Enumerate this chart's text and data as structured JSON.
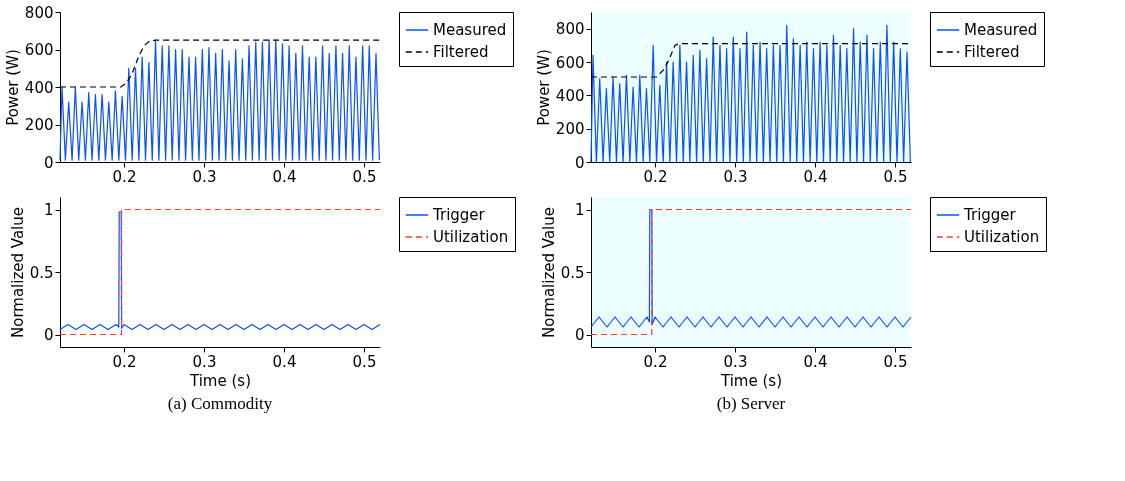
{
  "chart_data": [
    {
      "type": "line",
      "ylabel": "Power (W)",
      "xlim": [
        0.12,
        0.52
      ],
      "xticks": [
        0.2,
        0.3,
        0.4,
        0.5
      ],
      "ylim": [
        0,
        800
      ],
      "yticks": [
        0,
        200,
        400,
        600,
        800
      ],
      "grid": false,
      "legend": "right",
      "marker": "none",
      "series": [
        {
          "name": "Measured",
          "color": "#0a50ff",
          "line_style": "solid",
          "x": [
            0.12,
            0.1225,
            0.1267,
            0.1309,
            0.1351,
            0.1392,
            0.1434,
            0.1476,
            0.1518,
            0.1559,
            0.1601,
            0.1643,
            0.1685,
            0.1726,
            0.1768,
            0.181,
            0.1852,
            0.1893,
            0.1935,
            0.1977,
            0.2019,
            0.206,
            0.2102,
            0.2144,
            0.2186,
            0.2227,
            0.2269,
            0.2311,
            0.2353,
            0.2394,
            0.2436,
            0.2478,
            0.252,
            0.2561,
            0.2603,
            0.2645,
            0.2687,
            0.2728,
            0.277,
            0.2812,
            0.2854,
            0.2895,
            0.2937,
            0.2979,
            0.3021,
            0.3062,
            0.3104,
            0.3146,
            0.3188,
            0.3229,
            0.3271,
            0.3313,
            0.3355,
            0.3396,
            0.3438,
            0.348,
            0.3522,
            0.3563,
            0.3605,
            0.3647,
            0.3689,
            0.373,
            0.3772,
            0.3814,
            0.3856,
            0.3897,
            0.3939,
            0.3981,
            0.4023,
            0.4064,
            0.4106,
            0.4148,
            0.419,
            0.4231,
            0.4273,
            0.4315,
            0.4357,
            0.4398,
            0.444,
            0.4482,
            0.4524,
            0.4565,
            0.4607,
            0.4649,
            0.4691,
            0.4732,
            0.4774,
            0.4816,
            0.4858,
            0.4899,
            0.4941,
            0.4983,
            0.5025,
            0.5066,
            0.5108,
            0.515,
            0.5192
          ],
          "values": [
            10,
            400,
            10,
            320,
            10,
            400,
            10,
            320,
            10,
            370,
            10,
            360,
            10,
            360,
            10,
            320,
            10,
            380,
            10,
            350,
            10,
            500,
            10,
            500,
            10,
            560,
            10,
            530,
            10,
            650,
            10,
            620,
            10,
            620,
            10,
            600,
            10,
            600,
            10,
            560,
            10,
            560,
            10,
            600,
            10,
            610,
            10,
            580,
            10,
            600,
            10,
            540,
            10,
            600,
            10,
            550,
            10,
            620,
            10,
            640,
            10,
            640,
            10,
            650,
            10,
            650,
            10,
            630,
            10,
            620,
            10,
            580,
            10,
            620,
            10,
            560,
            10,
            560,
            10,
            620,
            10,
            580,
            10,
            620,
            10,
            580,
            10,
            620,
            10,
            560,
            10,
            620,
            10,
            620,
            10,
            580,
            10
          ]
        },
        {
          "name": "Filtered",
          "color": "#000000",
          "line_style": "dashed",
          "x": [
            0.12,
            0.196,
            0.203,
            0.21,
            0.218,
            0.225,
            0.232,
            0.24,
            0.52
          ],
          "values": [
            400,
            400,
            420,
            470,
            560,
            620,
            645,
            650,
            650
          ]
        }
      ]
    },
    {
      "type": "line",
      "ylabel": "Power (W)",
      "xlim": [
        0.12,
        0.52
      ],
      "xticks": [
        0.2,
        0.3,
        0.4,
        0.5
      ],
      "ylim": [
        0,
        900
      ],
      "yticks": [
        0,
        200,
        400,
        600,
        800
      ],
      "grid": false,
      "legend": "right",
      "marker": "none",
      "series": [
        {
          "name": "Measured",
          "color": "#0a50ff",
          "line_style": "solid",
          "x": [
            0.12,
            0.1225,
            0.1267,
            0.1309,
            0.1351,
            0.1392,
            0.1434,
            0.1476,
            0.1518,
            0.1559,
            0.1601,
            0.1643,
            0.1685,
            0.1726,
            0.1768,
            0.181,
            0.1852,
            0.1893,
            0.1935,
            0.1977,
            0.2019,
            0.206,
            0.2102,
            0.2144,
            0.2186,
            0.2227,
            0.2269,
            0.2311,
            0.2353,
            0.2394,
            0.2436,
            0.2478,
            0.252,
            0.2561,
            0.2603,
            0.2645,
            0.2687,
            0.2728,
            0.277,
            0.2812,
            0.2854,
            0.2895,
            0.2937,
            0.2979,
            0.3021,
            0.3062,
            0.3104,
            0.3146,
            0.3188,
            0.3229,
            0.3271,
            0.3313,
            0.3355,
            0.3396,
            0.3438,
            0.348,
            0.3522,
            0.3563,
            0.3605,
            0.3647,
            0.3689,
            0.373,
            0.3772,
            0.3814,
            0.3856,
            0.3897,
            0.3939,
            0.3981,
            0.4023,
            0.4064,
            0.4106,
            0.4148,
            0.419,
            0.4231,
            0.4273,
            0.4315,
            0.4357,
            0.4398,
            0.444,
            0.4482,
            0.4524,
            0.4565,
            0.4607,
            0.4649,
            0.4691,
            0.4732,
            0.4774,
            0.4816,
            0.4858,
            0.4899,
            0.4941,
            0.4983,
            0.5025,
            0.5066,
            0.5108,
            0.515,
            0.5192
          ],
          "values": [
            0,
            640,
            0,
            500,
            0,
            440,
            0,
            510,
            0,
            470,
            0,
            520,
            0,
            450,
            0,
            520,
            0,
            440,
            0,
            700,
            0,
            460,
            0,
            600,
            0,
            600,
            0,
            700,
            0,
            600,
            0,
            640,
            0,
            670,
            0,
            620,
            0,
            750,
            0,
            700,
            0,
            680,
            0,
            750,
            0,
            680,
            0,
            780,
            0,
            700,
            0,
            720,
            0,
            680,
            0,
            700,
            0,
            700,
            0,
            820,
            0,
            740,
            0,
            700,
            0,
            720,
            0,
            680,
            0,
            720,
            0,
            700,
            0,
            760,
            0,
            700,
            0,
            680,
            0,
            800,
            0,
            720,
            0,
            760,
            0,
            680,
            0,
            720,
            0,
            820,
            0,
            720,
            0,
            680,
            0,
            660,
            0
          ]
        },
        {
          "name": "Filtered",
          "color": "#000000",
          "line_style": "dashed",
          "x": [
            0.12,
            0.202,
            0.212,
            0.218,
            0.225,
            0.23,
            0.52
          ],
          "values": [
            510,
            510,
            560,
            620,
            700,
            710,
            710
          ]
        }
      ]
    },
    {
      "type": "line",
      "xlabel": "Time (s)",
      "ylabel": "Normalized Value",
      "xlim": [
        0.12,
        0.52
      ],
      "xticks": [
        0.2,
        0.3,
        0.4,
        0.5
      ],
      "ylim": [
        -0.1,
        1.1
      ],
      "yticks": [
        0,
        0.5,
        1
      ],
      "grid": false,
      "legend": "right",
      "marker": "none",
      "annotations": [
        "(a) Commodity"
      ],
      "series": [
        {
          "name": "Trigger",
          "color": "#0a50ff",
          "line_style": "solid",
          "x": [
            0.12,
            0.13,
            0.14,
            0.15,
            0.16,
            0.17,
            0.18,
            0.19,
            0.1935,
            0.194,
            0.1965,
            0.197,
            0.2,
            0.21,
            0.22,
            0.23,
            0.24,
            0.25,
            0.26,
            0.27,
            0.28,
            0.29,
            0.3,
            0.31,
            0.32,
            0.33,
            0.34,
            0.35,
            0.36,
            0.37,
            0.38,
            0.39,
            0.4,
            0.41,
            0.42,
            0.43,
            0.44,
            0.45,
            0.46,
            0.47,
            0.48,
            0.49,
            0.5,
            0.51,
            0.52
          ],
          "values": [
            0.04,
            0.08,
            0.04,
            0.08,
            0.04,
            0.08,
            0.04,
            0.08,
            0.06,
            0.98,
            0.98,
            0.05,
            0.08,
            0.04,
            0.08,
            0.04,
            0.08,
            0.04,
            0.08,
            0.04,
            0.08,
            0.04,
            0.08,
            0.04,
            0.08,
            0.04,
            0.08,
            0.04,
            0.08,
            0.04,
            0.08,
            0.04,
            0.08,
            0.04,
            0.08,
            0.04,
            0.08,
            0.04,
            0.08,
            0.04,
            0.08,
            0.04,
            0.08,
            0.04,
            0.08
          ]
        },
        {
          "name": "Utilization",
          "color": "#ff3b2f",
          "line_style": "dashed",
          "x": [
            0.12,
            0.197,
            0.197,
            0.52
          ],
          "values": [
            0,
            0,
            1,
            1
          ]
        }
      ]
    },
    {
      "type": "line",
      "xlabel": "Time (s)",
      "ylabel": "Normalized Value",
      "xlim": [
        0.12,
        0.52
      ],
      "xticks": [
        0.2,
        0.3,
        0.4,
        0.5
      ],
      "ylim": [
        -0.1,
        1.1
      ],
      "yticks": [
        0,
        0.5,
        1
      ],
      "grid": false,
      "legend": "right",
      "marker": "none",
      "annotations": [
        "(b) Server"
      ],
      "series": [
        {
          "name": "Trigger",
          "color": "#0a50ff",
          "line_style": "solid",
          "x": [
            0.12,
            0.13,
            0.14,
            0.15,
            0.16,
            0.17,
            0.18,
            0.19,
            0.193,
            0.1935,
            0.196,
            0.1965,
            0.2,
            0.21,
            0.22,
            0.23,
            0.24,
            0.25,
            0.26,
            0.27,
            0.28,
            0.29,
            0.3,
            0.31,
            0.32,
            0.33,
            0.34,
            0.35,
            0.36,
            0.37,
            0.38,
            0.39,
            0.4,
            0.41,
            0.42,
            0.43,
            0.44,
            0.45,
            0.46,
            0.47,
            0.48,
            0.49,
            0.5,
            0.51,
            0.52
          ],
          "values": [
            0.06,
            0.14,
            0.06,
            0.14,
            0.06,
            0.14,
            0.06,
            0.14,
            0.1,
            1,
            1,
            0.08,
            0.14,
            0.06,
            0.14,
            0.06,
            0.14,
            0.06,
            0.14,
            0.06,
            0.14,
            0.06,
            0.14,
            0.06,
            0.14,
            0.06,
            0.14,
            0.06,
            0.14,
            0.06,
            0.14,
            0.06,
            0.14,
            0.06,
            0.14,
            0.06,
            0.14,
            0.06,
            0.14,
            0.06,
            0.14,
            0.06,
            0.14,
            0.06,
            0.14
          ]
        },
        {
          "name": "Utilization",
          "color": "#ff3b2f",
          "line_style": "dashed",
          "x": [
            0.12,
            0.196,
            0.196,
            0.52
          ],
          "values": [
            0,
            0,
            1,
            1
          ]
        }
      ]
    }
  ]
}
